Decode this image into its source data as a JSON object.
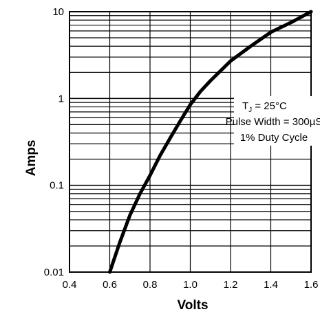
{
  "chart_data": {
    "type": "line",
    "title": "",
    "xlabel": "Volts",
    "ylabel": "Amps",
    "xlim": [
      0.4,
      1.6
    ],
    "ylim": [
      0.01,
      10
    ],
    "yscale": "log",
    "grid": true,
    "x_ticks": [
      "0.4",
      "0.6",
      "0.8",
      "1.0",
      "1.2",
      "1.4",
      "1.6"
    ],
    "y_ticks": [
      "0.01",
      "0.1",
      "1",
      "10"
    ],
    "series": [
      {
        "x": [
          0.6,
          0.65,
          0.7,
          0.75,
          0.8,
          0.85,
          0.9,
          0.95,
          1.0,
          1.05,
          1.1,
          1.2,
          1.3,
          1.4,
          1.5,
          1.6
        ],
        "y": [
          0.01,
          0.022,
          0.045,
          0.08,
          0.13,
          0.22,
          0.35,
          0.55,
          0.85,
          1.2,
          1.6,
          2.7,
          4.0,
          5.8,
          7.5,
          10.0
        ]
      }
    ],
    "annotation": {
      "line1_main": "T",
      "line1_sub": "J",
      "line1_rest": " = 25°C",
      "line2": "Pulse Width = 300µS",
      "line3": "1% Duty Cycle"
    }
  }
}
